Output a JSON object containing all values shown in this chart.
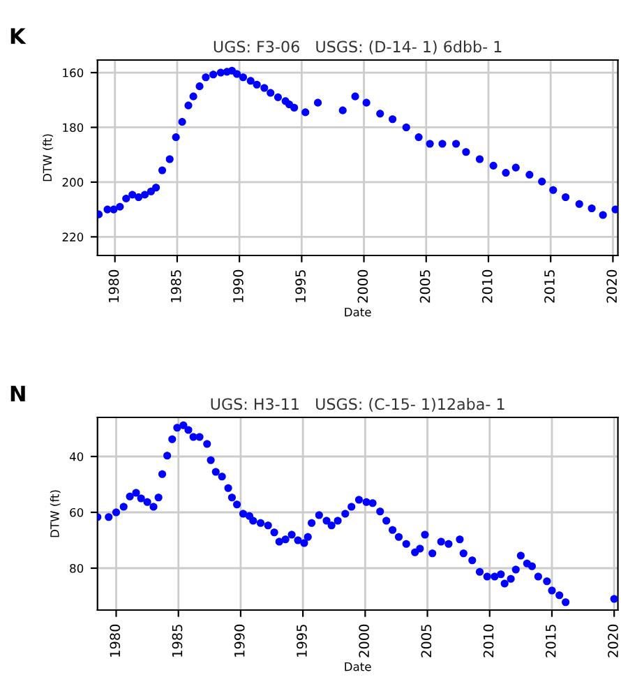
{
  "chart_data": [
    {
      "type": "scatter",
      "title": "UGS: F3-06   USGS: (D-14- 1) 6dbb- 1",
      "xlabel": "Date",
      "ylabel": "DTW (ft)",
      "annotations": [
        "K"
      ],
      "marker": "circle",
      "grid": true,
      "xlim": [
        1978.6,
        2020.4
      ],
      "xticks": [
        1980,
        1985,
        1990,
        1995,
        2000,
        2005,
        2010,
        2015,
        2020
      ],
      "ylim": [
        226.8,
        155.4
      ],
      "yticks": [
        160,
        180,
        200,
        220
      ],
      "series": [
        {
          "color": "#0000ff",
          "x": [
            1978.7,
            1979.4,
            1979.9,
            1980.4,
            1980.9,
            1981.4,
            1981.9,
            1982.4,
            1982.9,
            1983.3,
            1983.8,
            1984.4,
            1984.9,
            1985.4,
            1985.9,
            1986.3,
            1986.8,
            1987.3,
            1987.9,
            1988.5,
            1989.0,
            1989.4,
            1989.8,
            1990.3,
            1990.9,
            1991.4,
            1992.0,
            1992.5,
            1993.1,
            1993.7,
            1994.0,
            1994.4,
            1995.3,
            1996.3,
            1998.3,
            1999.3,
            2000.2,
            2001.3,
            2002.3,
            2003.4,
            2004.4,
            2005.3,
            2006.3,
            2007.4,
            2008.2,
            2009.3,
            2010.4,
            2011.4,
            2012.2,
            2013.3,
            2014.3,
            2015.2,
            2016.2,
            2017.3,
            2018.3,
            2019.2,
            2020.2
          ],
          "values": [
            211.8,
            210,
            210,
            209,
            206,
            204.6,
            205.5,
            204.6,
            203.4,
            202,
            195.7,
            191.6,
            183.6,
            178,
            172,
            168.7,
            165,
            161.7,
            160.7,
            160,
            159.7,
            159.3,
            160.5,
            161.7,
            163,
            164.4,
            165.6,
            167.4,
            169,
            170.4,
            171.6,
            172.8,
            174.5,
            171,
            173.8,
            168.7,
            171,
            175,
            177,
            180,
            183.6,
            186,
            186,
            186,
            189,
            191.6,
            194,
            196.6,
            194.7,
            197.3,
            199.8,
            202.9,
            205.5,
            208,
            209.6,
            212,
            210
          ]
        }
      ]
    },
    {
      "type": "scatter",
      "title": "UGS: H3-11   USGS: (C-15- 1)12aba- 1",
      "xlabel": "Date",
      "ylabel": "DTW (ft)",
      "annotations": [
        "N"
      ],
      "marker": "circle",
      "grid": true,
      "xlim": [
        1978.5,
        2020.3
      ],
      "xticks": [
        1980,
        1985,
        1990,
        1995,
        2000,
        2005,
        2010,
        2015,
        2020
      ],
      "ylim": [
        95,
        26
      ],
      "yticks": [
        40,
        60,
        80
      ],
      "series": [
        {
          "color": "#0000ff",
          "x": [
            1978.5,
            1979.4,
            1980,
            1980.6,
            1981.1,
            1981.6,
            1982,
            1982.5,
            1983,
            1983.4,
            1983.7,
            1984.1,
            1984.5,
            1984.9,
            1985.4,
            1985.8,
            1986.2,
            1986.7,
            1987.3,
            1987.6,
            1988,
            1988.5,
            1989,
            1989.3,
            1989.7,
            1990.2,
            1990.7,
            1991,
            1991.6,
            1992.2,
            1992.7,
            1993.1,
            1993.6,
            1994.1,
            1994.6,
            1995.1,
            1995.4,
            1995.7,
            1996.3,
            1996.9,
            1997.3,
            1997.8,
            1998.4,
            1998.9,
            1999.5,
            2000.1,
            2000.6,
            2001.2,
            2001.7,
            2002.2,
            2002.7,
            2003.3,
            2004,
            2004.4,
            2004.8,
            2005.4,
            2006.1,
            2006.7,
            2007.6,
            2007.9,
            2008.6,
            2009.2,
            2009.8,
            2010.4,
            2010.9,
            2011.2,
            2011.7,
            2012.1,
            2012.5,
            2013,
            2013.4,
            2013.9,
            2014.6,
            2015,
            2015.6,
            2016.1,
            2020
          ],
          "values": [
            61.7,
            61.7,
            60,
            58,
            54.3,
            53,
            55,
            56.3,
            58,
            54.7,
            46.3,
            39.7,
            33.8,
            29.7,
            28.8,
            30.5,
            33,
            33,
            35.5,
            41.3,
            45.5,
            47.2,
            51.3,
            54.7,
            57.2,
            60.5,
            61.3,
            63,
            63.8,
            64.7,
            67.2,
            70.5,
            69.7,
            68,
            70,
            71,
            68.8,
            63.8,
            61,
            63,
            64.7,
            63,
            60.5,
            58,
            55.5,
            56.3,
            56.7,
            59.7,
            63,
            66.3,
            68.8,
            71.3,
            74.3,
            73,
            68,
            74.7,
            70.5,
            71.3,
            69.7,
            74.7,
            77.2,
            81.3,
            83,
            83,
            82.2,
            85.5,
            83.8,
            80.5,
            75.5,
            78.3,
            79.3,
            83,
            84.7,
            88,
            89.7,
            92.2,
            91
          ]
        }
      ]
    }
  ]
}
